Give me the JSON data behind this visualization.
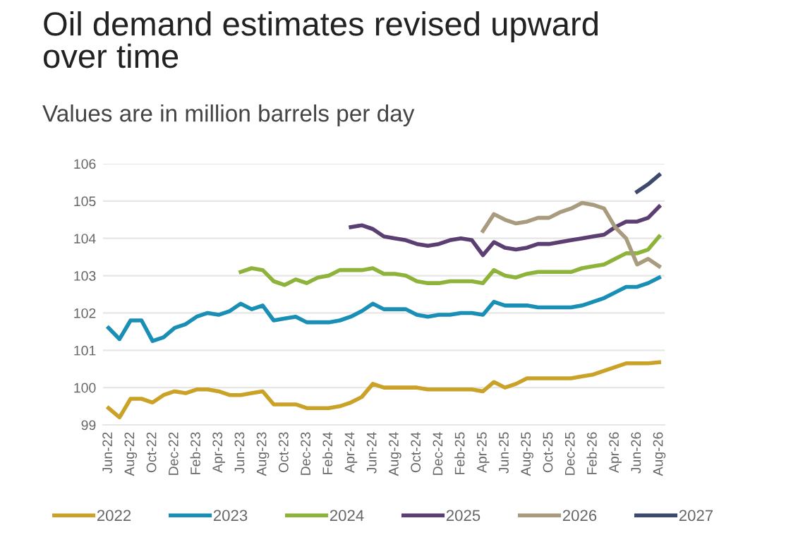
{
  "chart_data": {
    "type": "line",
    "title": "Oil demand estimates revised upward\nover time",
    "subtitle": "Values are in million barrels per day",
    "categories": [
      "Jun-22",
      null,
      "Aug-22",
      null,
      "Oct-22",
      null,
      "Dec-22",
      null,
      "Feb-23",
      null,
      "Apr-23",
      null,
      "Jun-23",
      null,
      "Aug-23",
      null,
      "Oct-23",
      null,
      "Dec-23",
      null,
      "Feb-24",
      null,
      "Apr-24",
      null,
      "Jun-24",
      null,
      "Aug-24",
      null,
      "Oct-24",
      null,
      "Dec-24",
      null,
      "Feb-25",
      null,
      "Apr-25",
      null,
      "Jun-25",
      null,
      "Aug-25",
      null,
      "Oct-25",
      null,
      "Dec-25",
      null,
      "Feb-26",
      null,
      "Apr-26",
      null,
      "Jun-26",
      null,
      "Aug-26"
    ],
    "series": [
      {
        "name": "2022",
        "color": "#c9a227",
        "values": [
          99.45,
          99.2,
          99.7,
          99.7,
          99.6,
          99.8,
          99.9,
          99.85,
          99.95,
          99.95,
          99.9,
          99.8,
          99.8,
          99.85,
          99.9,
          99.55,
          99.55,
          99.55,
          99.45,
          99.45,
          99.45,
          99.5,
          99.6,
          99.75,
          100.1,
          100.0,
          100.0,
          100.0,
          100.0,
          99.95,
          99.95,
          99.95,
          99.95,
          99.95,
          99.9,
          100.15,
          100.0,
          100.1,
          100.25,
          100.25,
          100.25,
          100.25,
          100.25,
          100.3,
          100.35,
          100.45,
          100.55,
          100.65,
          100.65,
          100.65,
          100.68
        ]
      },
      {
        "name": "2023",
        "color": "#1a8fb5",
        "values": [
          101.6,
          101.3,
          101.8,
          101.8,
          101.25,
          101.35,
          101.6,
          101.7,
          101.9,
          102.0,
          101.95,
          102.05,
          102.25,
          102.1,
          102.2,
          101.8,
          101.85,
          101.9,
          101.75,
          101.75,
          101.75,
          101.8,
          101.9,
          102.05,
          102.25,
          102.1,
          102.1,
          102.1,
          101.95,
          101.9,
          101.95,
          101.95,
          102.0,
          102.0,
          101.95,
          102.3,
          102.2,
          102.2,
          102.2,
          102.15,
          102.15,
          102.15,
          102.15,
          102.2,
          102.3,
          102.4,
          102.55,
          102.7,
          102.7,
          102.8,
          102.95
        ]
      },
      {
        "name": "2024",
        "color": "#8db33a",
        "values": [
          null,
          null,
          null,
          null,
          null,
          null,
          null,
          null,
          null,
          null,
          null,
          null,
          103.1,
          103.2,
          103.15,
          102.85,
          102.75,
          102.9,
          102.8,
          102.95,
          103.0,
          103.15,
          103.15,
          103.15,
          103.2,
          103.05,
          103.05,
          103.0,
          102.85,
          102.8,
          102.8,
          102.85,
          102.85,
          102.85,
          102.8,
          103.15,
          103.0,
          102.95,
          103.05,
          103.1,
          103.1,
          103.1,
          103.1,
          103.2,
          103.25,
          103.3,
          103.45,
          103.6,
          103.6,
          103.7,
          104.05
        ]
      },
      {
        "name": "2025",
        "color": "#5b3f72",
        "values": [
          null,
          null,
          null,
          null,
          null,
          null,
          null,
          null,
          null,
          null,
          null,
          null,
          null,
          null,
          null,
          null,
          null,
          null,
          null,
          null,
          null,
          null,
          104.3,
          104.35,
          104.25,
          104.05,
          104.0,
          103.95,
          103.85,
          103.8,
          103.85,
          103.95,
          104.0,
          103.95,
          103.55,
          103.9,
          103.75,
          103.7,
          103.75,
          103.85,
          103.85,
          103.9,
          103.95,
          104.0,
          104.05,
          104.1,
          104.3,
          104.45,
          104.45,
          104.55,
          104.85
        ]
      },
      {
        "name": "2026",
        "color": "#a89b7e",
        "values": [
          null,
          null,
          null,
          null,
          null,
          null,
          null,
          null,
          null,
          null,
          null,
          null,
          null,
          null,
          null,
          null,
          null,
          null,
          null,
          null,
          null,
          null,
          null,
          null,
          null,
          null,
          null,
          null,
          null,
          null,
          null,
          null,
          null,
          null,
          104.2,
          104.65,
          104.5,
          104.4,
          104.45,
          104.55,
          104.55,
          104.7,
          104.8,
          104.95,
          104.9,
          104.8,
          104.3,
          104.0,
          103.3,
          103.45,
          103.25
        ]
      },
      {
        "name": "2027",
        "color": "#3d4a6e",
        "values": [
          null,
          null,
          null,
          null,
          null,
          null,
          null,
          null,
          null,
          null,
          null,
          null,
          null,
          null,
          null,
          null,
          null,
          null,
          null,
          null,
          null,
          null,
          null,
          null,
          null,
          null,
          null,
          null,
          null,
          null,
          null,
          null,
          null,
          null,
          null,
          null,
          null,
          null,
          null,
          null,
          null,
          null,
          null,
          null,
          null,
          null,
          null,
          null,
          105.25,
          105.45,
          105.7
        ]
      }
    ],
    "ylim": [
      99,
      106
    ],
    "yticks": [
      99,
      100,
      101,
      102,
      103,
      104,
      105,
      106
    ],
    "grid": "y",
    "legend": "bottom",
    "marker": "none",
    "line_style": "solid"
  }
}
